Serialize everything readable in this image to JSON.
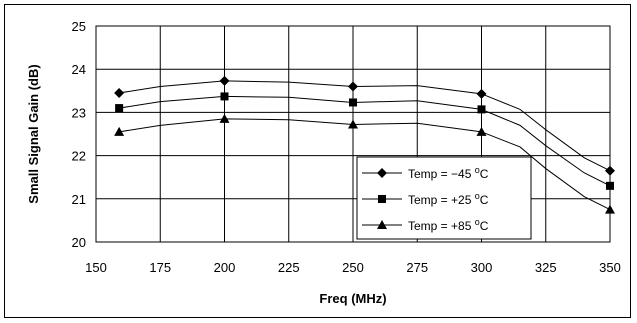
{
  "chart_data": {
    "type": "line",
    "xlabel": "Freq (MHz)",
    "ylabel": "Small Signal Gain (dB)",
    "xlim": [
      150,
      350
    ],
    "ylim": [
      20,
      25
    ],
    "xticks": [
      "150",
      "175",
      "200",
      "225",
      "250",
      "275",
      "300",
      "325",
      "350"
    ],
    "yticks": [
      "20",
      "21",
      "22",
      "23",
      "24",
      "25"
    ],
    "grid": true,
    "legend_position": "bottom-right",
    "marker_x": [
      159,
      200,
      250,
      300,
      350
    ],
    "x": [
      159,
      175,
      200,
      225,
      250,
      275,
      300,
      315,
      325,
      340,
      350
    ],
    "series": [
      {
        "name": "Temp = −45 °C",
        "legend_base": "Temp = −45 ",
        "legend_sup": "o",
        "legend_unit": "C",
        "marker": "diamond",
        "values": [
          23.45,
          23.6,
          23.73,
          23.7,
          23.6,
          23.62,
          23.43,
          23.07,
          22.6,
          21.95,
          21.65
        ]
      },
      {
        "name": "Temp = +25 °C",
        "legend_base": "Temp = +25 ",
        "legend_sup": "o",
        "legend_unit": "C",
        "marker": "square",
        "values": [
          23.1,
          23.25,
          23.37,
          23.35,
          23.23,
          23.27,
          23.07,
          22.7,
          22.23,
          21.6,
          21.3
        ]
      },
      {
        "name": "Temp = +85 °C",
        "legend_base": "Temp = +85 ",
        "legend_sup": "o",
        "legend_unit": "C",
        "marker": "triangle",
        "values": [
          22.55,
          22.7,
          22.85,
          22.83,
          22.72,
          22.75,
          22.55,
          22.2,
          21.7,
          21.05,
          20.75
        ]
      }
    ]
  }
}
